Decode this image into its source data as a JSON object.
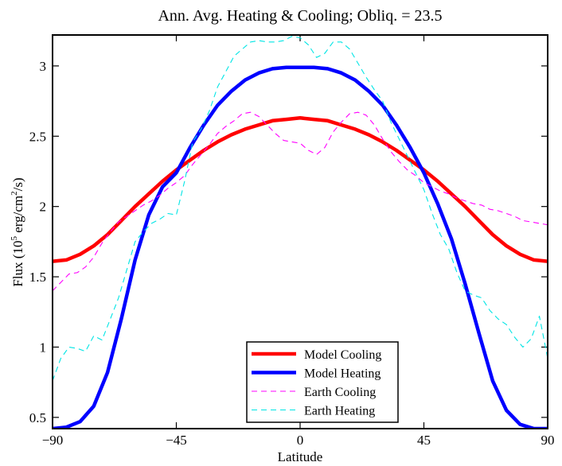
{
  "chart_data": {
    "type": "line",
    "title": "Ann. Avg. Heating & Cooling; Obliq. = 23.5",
    "xlabel": "Latitude",
    "ylabel": {
      "prefix": "Flux (10",
      "exp1": "5",
      "mid": " erg/cm",
      "exp2": "2",
      "suffix": "/s)"
    },
    "xlim": [
      -90,
      90
    ],
    "ylim": [
      0.42,
      3.22
    ],
    "xticks": [
      -90,
      -45,
      0,
      45,
      90
    ],
    "yticks": [
      0.5,
      1,
      1.5,
      2,
      2.5,
      3
    ],
    "ytick_labels": [
      "0.5",
      "1",
      "1.5",
      "2",
      "2.5",
      "3"
    ],
    "legend_position": "bottom-center",
    "series": [
      {
        "name": "Model Cooling",
        "color": "#ff0000",
        "style": "solid",
        "x": [
          -90,
          -85,
          -80,
          -75,
          -70,
          -65,
          -60,
          -55,
          -50,
          -45,
          -40,
          -35,
          -30,
          -25,
          -20,
          -15,
          -10,
          -5,
          0,
          5,
          10,
          15,
          20,
          25,
          30,
          35,
          40,
          45,
          50,
          55,
          60,
          65,
          70,
          75,
          80,
          85,
          90
        ],
        "y": [
          1.61,
          1.62,
          1.66,
          1.72,
          1.8,
          1.9,
          2.0,
          2.09,
          2.18,
          2.26,
          2.33,
          2.4,
          2.46,
          2.51,
          2.55,
          2.58,
          2.61,
          2.62,
          2.63,
          2.62,
          2.61,
          2.58,
          2.55,
          2.51,
          2.46,
          2.4,
          2.33,
          2.26,
          2.18,
          2.09,
          2.0,
          1.9,
          1.8,
          1.72,
          1.66,
          1.62,
          1.61
        ]
      },
      {
        "name": "Model Heating",
        "color": "#0000ff",
        "style": "solid",
        "x": [
          -90,
          -85,
          -80,
          -75,
          -70,
          -65,
          -60,
          -55,
          -50,
          -45,
          -40,
          -35,
          -30,
          -25,
          -20,
          -15,
          -10,
          -5,
          0,
          5,
          10,
          15,
          20,
          25,
          30,
          35,
          40,
          45,
          50,
          55,
          60,
          65,
          70,
          75,
          80,
          85,
          90
        ],
        "y": [
          0.42,
          0.43,
          0.47,
          0.58,
          0.82,
          1.2,
          1.62,
          1.94,
          2.14,
          2.24,
          2.42,
          2.58,
          2.72,
          2.82,
          2.9,
          2.95,
          2.98,
          2.99,
          2.99,
          2.99,
          2.98,
          2.95,
          2.9,
          2.82,
          2.72,
          2.58,
          2.42,
          2.24,
          2.02,
          1.77,
          1.45,
          1.1,
          0.76,
          0.55,
          0.45,
          0.42,
          0.42
        ]
      },
      {
        "name": "Earth Cooling",
        "color": "#ff00ff",
        "style": "dashed",
        "x": [
          -90,
          -87,
          -84,
          -81,
          -78,
          -75,
          -72,
          -69,
          -66,
          -63,
          -60,
          -57,
          -54,
          -51,
          -48,
          -45,
          -42,
          -39,
          -36,
          -33,
          -30,
          -27,
          -24,
          -21,
          -18,
          -15,
          -12,
          -9,
          -6,
          -3,
          0,
          3,
          6,
          9,
          12,
          15,
          18,
          21,
          24,
          27,
          30,
          33,
          36,
          39,
          42,
          45,
          48,
          51,
          54,
          57,
          60,
          63,
          66,
          69,
          72,
          75,
          78,
          81,
          84,
          87,
          90
        ],
        "y": [
          1.4,
          1.46,
          1.52,
          1.53,
          1.57,
          1.64,
          1.74,
          1.82,
          1.89,
          1.93,
          1.97,
          2.01,
          2.04,
          2.08,
          2.13,
          2.17,
          2.22,
          2.3,
          2.37,
          2.44,
          2.52,
          2.57,
          2.61,
          2.66,
          2.67,
          2.64,
          2.58,
          2.52,
          2.47,
          2.46,
          2.45,
          2.4,
          2.37,
          2.42,
          2.53,
          2.6,
          2.66,
          2.67,
          2.65,
          2.58,
          2.48,
          2.39,
          2.32,
          2.26,
          2.22,
          2.17,
          2.14,
          2.11,
          2.09,
          2.06,
          2.04,
          2.02,
          2.01,
          1.98,
          1.97,
          1.95,
          1.93,
          1.9,
          1.89,
          1.88,
          1.87
        ]
      },
      {
        "name": "Earth Heating",
        "color": "#00e5e5",
        "style": "dashed",
        "x": [
          -90,
          -87,
          -84,
          -81,
          -78,
          -75,
          -72,
          -69,
          -66,
          -63,
          -60,
          -57,
          -54,
          -51,
          -48,
          -45,
          -42,
          -39,
          -36,
          -33,
          -30,
          -27,
          -24,
          -21,
          -18,
          -15,
          -12,
          -9,
          -6,
          -3,
          0,
          3,
          6,
          9,
          12,
          15,
          18,
          21,
          24,
          27,
          30,
          33,
          36,
          39,
          42,
          45,
          48,
          51,
          54,
          57,
          60,
          63,
          66,
          69,
          72,
          75,
          78,
          81,
          84,
          87,
          90
        ],
        "y": [
          0.76,
          0.92,
          1.0,
          0.99,
          0.97,
          1.08,
          1.05,
          1.2,
          1.35,
          1.55,
          1.75,
          1.82,
          1.88,
          1.91,
          1.95,
          1.94,
          2.18,
          2.46,
          2.55,
          2.68,
          2.85,
          2.96,
          3.07,
          3.12,
          3.17,
          3.18,
          3.17,
          3.17,
          3.18,
          3.21,
          3.2,
          3.15,
          3.06,
          3.09,
          3.17,
          3.17,
          3.12,
          3.02,
          2.92,
          2.83,
          2.75,
          2.6,
          2.48,
          2.36,
          2.24,
          2.12,
          1.95,
          1.8,
          1.7,
          1.53,
          1.4,
          1.37,
          1.35,
          1.26,
          1.2,
          1.16,
          1.07,
          1.0,
          1.06,
          1.22,
          0.92
        ]
      }
    ]
  }
}
